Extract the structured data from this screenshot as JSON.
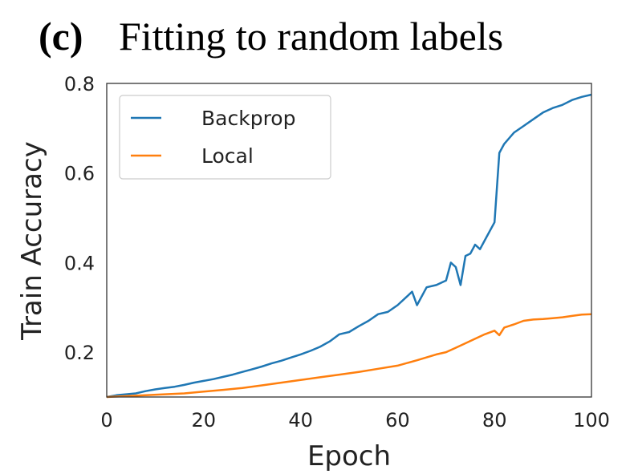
{
  "chart_data": {
    "type": "line",
    "panel_tag": "(c)",
    "title": "Fitting to random labels",
    "xlabel": "Epoch",
    "ylabel": "Train Accuracy",
    "xlim": [
      0,
      100
    ],
    "ylim": [
      0.1,
      0.8
    ],
    "xticks": [
      0,
      20,
      40,
      60,
      80,
      100
    ],
    "yticks": [
      0.2,
      0.4,
      0.6,
      0.8
    ],
    "xtick_labels": [
      "0",
      "20",
      "40",
      "60",
      "80",
      "100"
    ],
    "ytick_labels": [
      "0.2",
      "0.4",
      "0.6",
      "0.8"
    ],
    "grid": false,
    "legend_position": "upper-left",
    "series": [
      {
        "name": "Backprop",
        "color": "#1f77b4",
        "x": [
          0,
          2,
          4,
          6,
          8,
          10,
          12,
          14,
          16,
          18,
          20,
          22,
          24,
          26,
          28,
          30,
          32,
          34,
          36,
          38,
          40,
          42,
          44,
          46,
          48,
          50,
          52,
          54,
          56,
          58,
          60,
          62,
          63,
          64,
          66,
          68,
          70,
          71,
          72,
          73,
          74,
          75,
          76,
          77,
          78,
          80,
          81,
          82,
          84,
          86,
          88,
          90,
          92,
          94,
          96,
          98,
          100
        ],
        "y": [
          0.1,
          0.104,
          0.106,
          0.108,
          0.113,
          0.117,
          0.12,
          0.123,
          0.127,
          0.132,
          0.136,
          0.14,
          0.145,
          0.15,
          0.156,
          0.162,
          0.168,
          0.175,
          0.181,
          0.188,
          0.195,
          0.203,
          0.212,
          0.224,
          0.24,
          0.245,
          0.258,
          0.27,
          0.285,
          0.29,
          0.305,
          0.325,
          0.335,
          0.305,
          0.345,
          0.35,
          0.36,
          0.4,
          0.39,
          0.35,
          0.415,
          0.42,
          0.44,
          0.43,
          0.45,
          0.49,
          0.645,
          0.665,
          0.69,
          0.705,
          0.72,
          0.735,
          0.745,
          0.752,
          0.763,
          0.77,
          0.775
        ]
      },
      {
        "name": "Local",
        "color": "#ff7f0e",
        "x": [
          0,
          4,
          8,
          12,
          16,
          20,
          24,
          28,
          32,
          36,
          40,
          44,
          48,
          52,
          56,
          60,
          64,
          68,
          70,
          72,
          74,
          76,
          78,
          80,
          81,
          82,
          84,
          86,
          88,
          90,
          92,
          94,
          96,
          98,
          100
        ],
        "y": [
          0.1,
          0.102,
          0.104,
          0.106,
          0.108,
          0.112,
          0.116,
          0.12,
          0.126,
          0.132,
          0.138,
          0.144,
          0.15,
          0.156,
          0.163,
          0.17,
          0.182,
          0.195,
          0.2,
          0.21,
          0.22,
          0.23,
          0.24,
          0.248,
          0.238,
          0.255,
          0.262,
          0.27,
          0.273,
          0.274,
          0.276,
          0.278,
          0.281,
          0.284,
          0.285
        ]
      }
    ]
  }
}
